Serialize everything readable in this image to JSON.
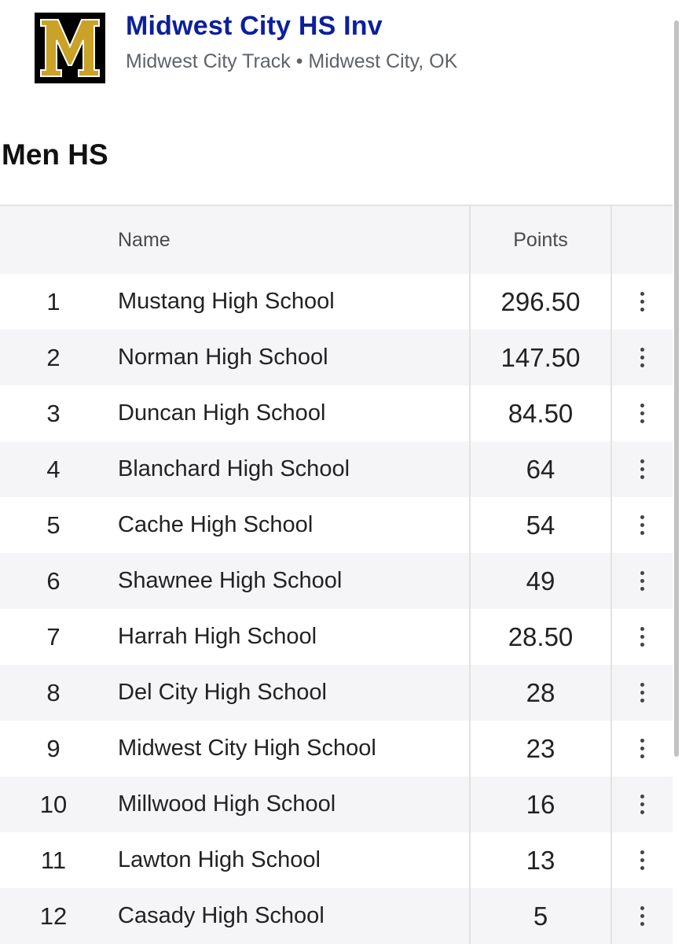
{
  "meet": {
    "logo_letter": "M",
    "title": "Midwest City HS Inv",
    "subtitle": "Midwest City Track • Midwest City, OK"
  },
  "section": {
    "title": "Men HS"
  },
  "table": {
    "columns": {
      "name": "Name",
      "points": "Points"
    },
    "rows": [
      {
        "rank": "1",
        "name": "Mustang High School",
        "points": "296.50"
      },
      {
        "rank": "2",
        "name": "Norman High School",
        "points": "147.50"
      },
      {
        "rank": "3",
        "name": "Duncan High School",
        "points": "84.50"
      },
      {
        "rank": "4",
        "name": "Blanchard High School",
        "points": "64"
      },
      {
        "rank": "5",
        "name": "Cache High School",
        "points": "54"
      },
      {
        "rank": "6",
        "name": "Shawnee High School",
        "points": "49"
      },
      {
        "rank": "7",
        "name": "Harrah High School",
        "points": "28.50"
      },
      {
        "rank": "8",
        "name": "Del City High School",
        "points": "28"
      },
      {
        "rank": "9",
        "name": "Midwest City High School",
        "points": "23"
      },
      {
        "rank": "10",
        "name": "Millwood High School",
        "points": "16"
      },
      {
        "rank": "11",
        "name": "Lawton High School",
        "points": "13"
      },
      {
        "rank": "12",
        "name": "Casady High School",
        "points": "5"
      }
    ]
  },
  "colors": {
    "title": "#0b1f9e",
    "logo_gold": "#c9a227",
    "row_alt": "#f5f5f7"
  },
  "icons": {
    "row_menu": "more-vertical-icon"
  }
}
